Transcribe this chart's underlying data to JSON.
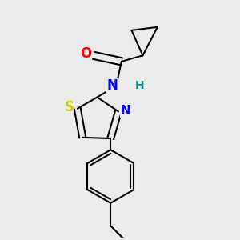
{
  "bg_color": "#ebebeb",
  "bond_color": "#000000",
  "bond_width": 1.5,
  "atom_colors": {
    "O": "#ff0000",
    "N": "#0000ff",
    "S": "#cccc00",
    "H": "#008b8b",
    "C": "#000000"
  },
  "font_size": 11,
  "xlim": [
    0.2,
    3.0
  ],
  "ylim": [
    0.1,
    3.2
  ]
}
